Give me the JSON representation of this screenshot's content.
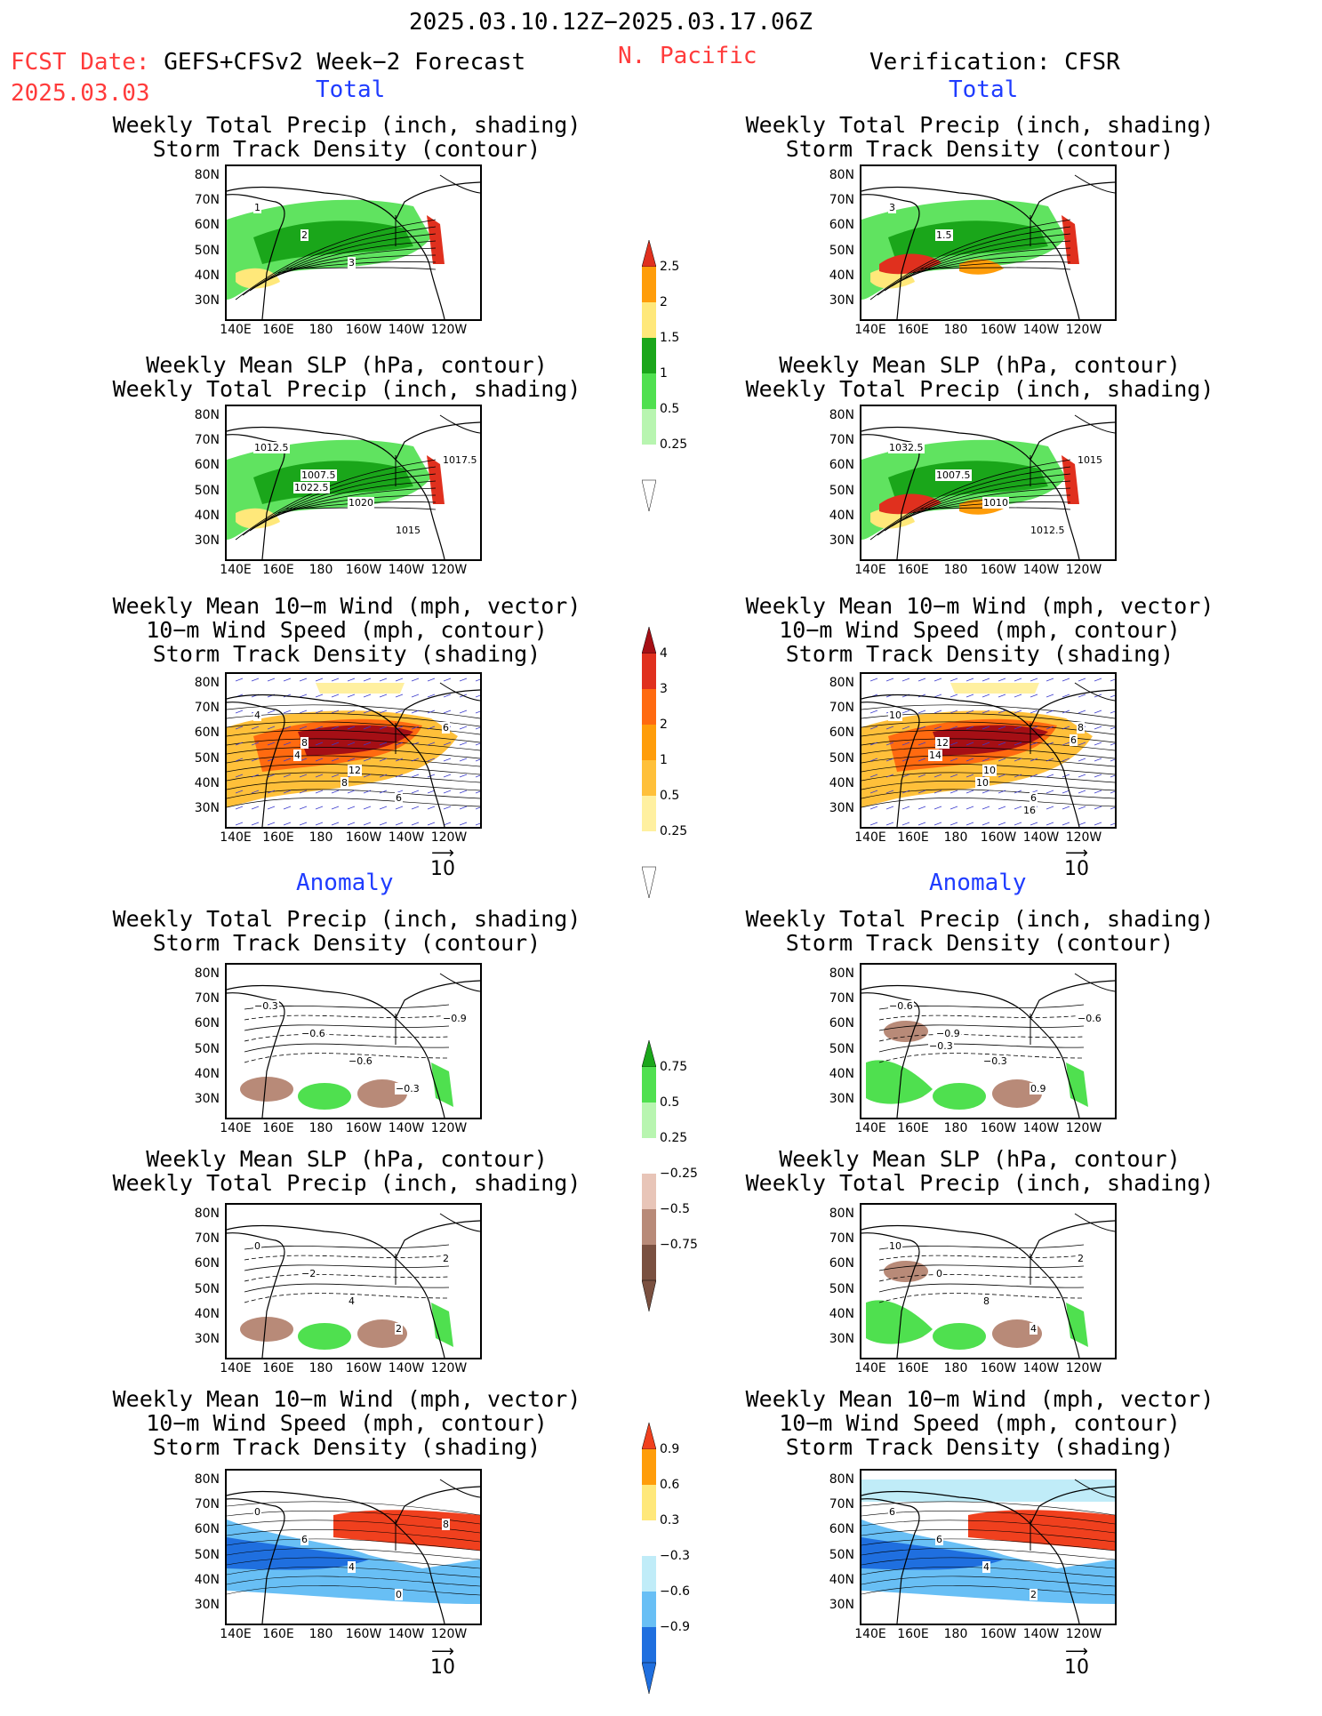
{
  "header": {
    "date_range": "2025.03.10.12Z−2025.03.17.06Z",
    "fcst_label": "FCST Date:",
    "fcst_model": "GEFS+CFSv2 Week−2 Forecast",
    "fcst_date": "2025.03.03",
    "region": "N. Pacific",
    "verification": "Verification: CFSR"
  },
  "sections": {
    "total": "Total",
    "anomaly": "Anomaly"
  },
  "titles": {
    "precip_storm": "Weekly Total Precip (inch, shading)\nStorm Track Density (contour)",
    "slp_precip": "Weekly Mean SLP (hPa, contour)\nWeekly Total Precip (inch, shading)",
    "wind_storm": "Weekly Mean 10−m Wind (mph, vector)\n10−m Wind Speed (mph, contour)\nStorm Track Density (shading)"
  },
  "axes": {
    "lat_ticks": [
      "80N",
      "70N",
      "60N",
      "50N",
      "40N",
      "30N"
    ],
    "lon_ticks": [
      "140E",
      "160E",
      "180",
      "160W",
      "140W",
      "120W"
    ]
  },
  "vector_ref": "10",
  "colorbars": {
    "precip_total": {
      "labels": [
        "2.5",
        "2",
        "1.5",
        "1",
        "0.5",
        "0.25"
      ],
      "colors": [
        "#e0301e",
        "#ff9d0a",
        "#ffe87a",
        "#1aa61a",
        "#4fe04f",
        "#b8f5b0",
        "#ffffff"
      ]
    },
    "storm_total": {
      "labels": [
        "4",
        "3",
        "2",
        "1",
        "0.5",
        "0.25"
      ],
      "colors": [
        "#a50f15",
        "#e0301e",
        "#ff6a10",
        "#ff9d0a",
        "#ffc03a",
        "#fff0a0",
        "#ffffff"
      ]
    },
    "precip_anom": {
      "labels": [
        "0.75",
        "0.5",
        "0.25",
        "−0.25",
        "−0.5",
        "−0.75"
      ],
      "colors": [
        "#1aa61a",
        "#4fe04f",
        "#b8f5b0",
        "#ffffff",
        "#e8c5b8",
        "#b88a78",
        "#7a5040"
      ]
    },
    "storm_anom": {
      "labels": [
        "0.9",
        "0.6",
        "0.3",
        "−0.3",
        "−0.6",
        "−0.9"
      ],
      "colors": [
        "#f0401e",
        "#ff9d0a",
        "#ffe87a",
        "#ffffff",
        "#c0ecf8",
        "#68bff5",
        "#1f6fdf"
      ]
    }
  },
  "contour_labels": {
    "p1l": [
      "1",
      "2",
      "3"
    ],
    "p1r": [
      "3",
      "1.5"
    ],
    "p2l": [
      "1012.5",
      "1007.5",
      "1020",
      "1015",
      "1017.5",
      "1022.5"
    ],
    "p2r": [
      "1032.5",
      "1007.5",
      "1010",
      "1012.5",
      "1015"
    ],
    "p3l": [
      "4",
      "8",
      "12",
      "6",
      "6",
      "4",
      "8"
    ],
    "p3r": [
      "10",
      "12",
      "10",
      "6",
      "8",
      "14",
      "10",
      "16",
      "6"
    ],
    "p4l": [
      "−0.3",
      "−0.6",
      "−0.6",
      "−0.3",
      "−0.9"
    ],
    "p4r": [
      "−0.6",
      "−0.9",
      "−0.3",
      "0.9",
      "−0.6",
      "−0.3"
    ],
    "p5l": [
      "0",
      "−2",
      "4",
      "2",
      "2"
    ],
    "p5r": [
      "10",
      "0",
      "8",
      "4",
      "2"
    ],
    "p6l": [
      "0",
      "6",
      "4",
      "0",
      "8"
    ],
    "p6r": [
      "6",
      "6",
      "4",
      "2"
    ]
  }
}
